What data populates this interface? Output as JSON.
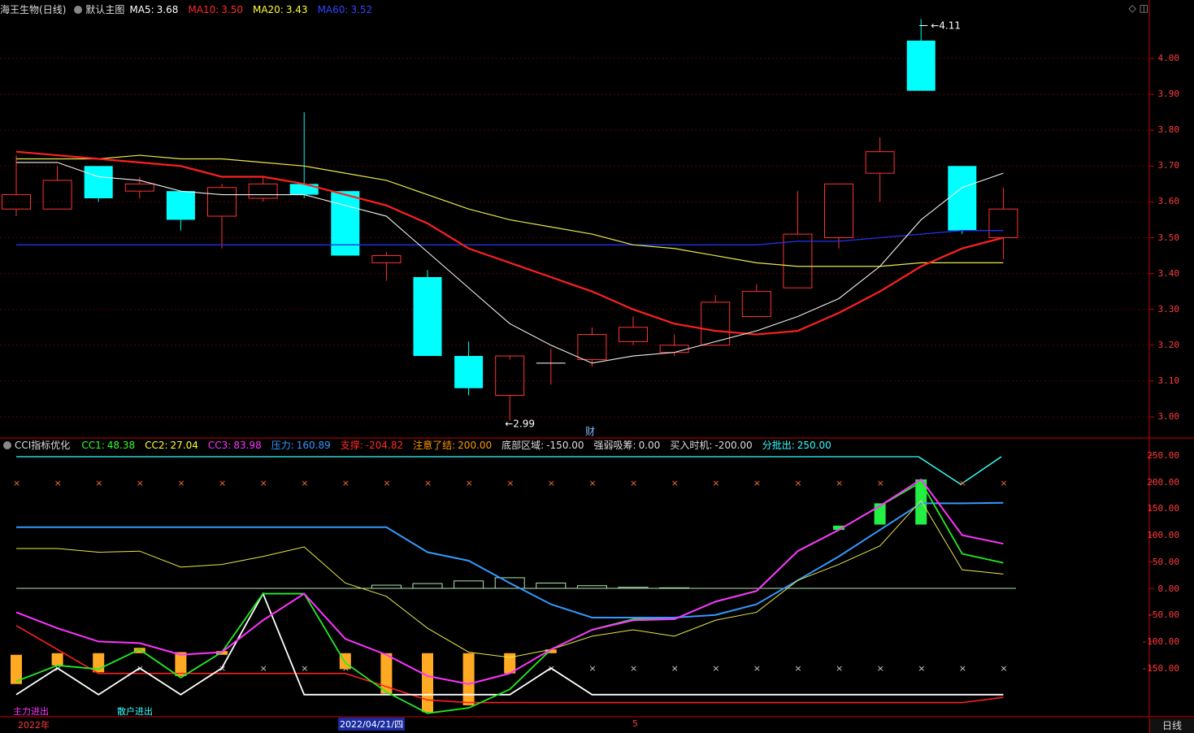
{
  "main_panel": {
    "stock_name": "海王生物",
    "period": "(日线)",
    "template": "默认主图",
    "ma": [
      {
        "label": "MA5:",
        "value": "3.68",
        "color": "#ffffff"
      },
      {
        "label": "MA10:",
        "value": "3.50",
        "color": "#ff2a2a"
      },
      {
        "label": "MA20:",
        "value": "3.43",
        "color": "#ffff33"
      },
      {
        "label": "MA60:",
        "value": "3.52",
        "color": "#3344ff"
      }
    ],
    "y_ticks": [
      "4.00",
      "3.90",
      "3.80",
      "3.70",
      "3.60",
      "3.50",
      "3.40",
      "3.30",
      "3.20",
      "3.10",
      "3.00"
    ],
    "high_annotation": "4.11",
    "low_annotation": "2.99",
    "cai_marker": "财"
  },
  "candles": [
    {
      "o": 3.58,
      "h": 3.73,
      "l": 3.56,
      "c": 3.62
    },
    {
      "o": 3.58,
      "h": 3.7,
      "l": 3.58,
      "c": 3.66
    },
    {
      "o": 3.7,
      "h": 3.7,
      "l": 3.6,
      "c": 3.61
    },
    {
      "o": 3.63,
      "h": 3.67,
      "l": 3.61,
      "c": 3.65
    },
    {
      "o": 3.63,
      "h": 3.63,
      "l": 3.52,
      "c": 3.55
    },
    {
      "o": 3.56,
      "h": 3.65,
      "l": 3.47,
      "c": 3.64
    },
    {
      "o": 3.61,
      "h": 3.67,
      "l": 3.6,
      "c": 3.65
    },
    {
      "o": 3.65,
      "h": 3.85,
      "l": 3.61,
      "c": 3.62
    },
    {
      "o": 3.63,
      "h": 3.63,
      "l": 3.45,
      "c": 3.45
    },
    {
      "o": 3.43,
      "h": 3.46,
      "l": 3.38,
      "c": 3.45
    },
    {
      "o": 3.39,
      "h": 3.41,
      "l": 3.17,
      "c": 3.17
    },
    {
      "o": 3.17,
      "h": 3.21,
      "l": 3.06,
      "c": 3.08
    },
    {
      "o": 3.06,
      "h": 3.16,
      "l": 2.99,
      "c": 3.17
    },
    {
      "o": 3.15,
      "h": 3.19,
      "l": 3.09,
      "c": 3.15
    },
    {
      "o": 3.16,
      "h": 3.25,
      "l": 3.14,
      "c": 3.23
    },
    {
      "o": 3.21,
      "h": 3.28,
      "l": 3.2,
      "c": 3.25
    },
    {
      "o": 3.18,
      "h": 3.23,
      "l": 3.17,
      "c": 3.2
    },
    {
      "o": 3.2,
      "h": 3.34,
      "l": 3.2,
      "c": 3.32
    },
    {
      "o": 3.28,
      "h": 3.37,
      "l": 3.28,
      "c": 3.35
    },
    {
      "o": 3.36,
      "h": 3.63,
      "l": 3.36,
      "c": 3.51
    },
    {
      "o": 3.5,
      "h": 3.65,
      "l": 3.47,
      "c": 3.65
    },
    {
      "o": 3.68,
      "h": 3.78,
      "l": 3.6,
      "c": 3.74
    },
    {
      "o": 4.05,
      "h": 4.11,
      "l": 3.91,
      "c": 3.91
    },
    {
      "o": 3.7,
      "h": 3.7,
      "l": 3.51,
      "c": 3.52
    },
    {
      "o": 3.5,
      "h": 3.64,
      "l": 3.44,
      "c": 3.58
    }
  ],
  "ma_series": {
    "ma5": [
      3.71,
      3.71,
      3.67,
      3.66,
      3.63,
      3.62,
      3.62,
      3.62,
      3.59,
      3.56,
      3.46,
      3.36,
      3.26,
      3.2,
      3.15,
      3.17,
      3.18,
      3.21,
      3.24,
      3.28,
      3.33,
      3.42,
      3.55,
      3.64,
      3.68
    ],
    "ma10": [
      3.74,
      3.73,
      3.72,
      3.71,
      3.7,
      3.67,
      3.67,
      3.65,
      3.62,
      3.59,
      3.54,
      3.47,
      3.43,
      3.39,
      3.35,
      3.3,
      3.26,
      3.24,
      3.23,
      3.24,
      3.29,
      3.35,
      3.42,
      3.47,
      3.5
    ],
    "ma20": [
      3.72,
      3.72,
      3.72,
      3.73,
      3.72,
      3.72,
      3.71,
      3.7,
      3.68,
      3.66,
      3.62,
      3.58,
      3.55,
      3.53,
      3.51,
      3.48,
      3.47,
      3.45,
      3.43,
      3.42,
      3.42,
      3.42,
      3.43,
      3.43,
      3.43
    ],
    "ma60": [
      3.48,
      3.48,
      3.48,
      3.48,
      3.48,
      3.48,
      3.48,
      3.48,
      3.48,
      3.48,
      3.48,
      3.48,
      3.48,
      3.48,
      3.48,
      3.48,
      3.48,
      3.48,
      3.48,
      3.49,
      3.49,
      3.5,
      3.51,
      3.52,
      3.52
    ]
  },
  "sub_panel": {
    "indicator_name": "CCI指标优化",
    "params": [
      {
        "label": "CC1:",
        "value": "48.38",
        "color": "#33ff33"
      },
      {
        "label": "CC2:",
        "value": "27.04",
        "color": "#ffff33"
      },
      {
        "label": "CC3:",
        "value": "83.98",
        "color": "#ff33ff"
      },
      {
        "label": "压力:",
        "value": "160.89",
        "color": "#3399ff"
      },
      {
        "label": "支撑:",
        "value": "-204.82",
        "color": "#ff2a2a"
      },
      {
        "label": "注意了结:",
        "value": "200.00",
        "color": "#ff9900"
      },
      {
        "label": "底部区域:",
        "value": "-150.00",
        "color": "#dddddd"
      },
      {
        "label": "强弱吸筹:",
        "value": "0.00",
        "color": "#dddddd"
      },
      {
        "label": "买入时机:",
        "value": "-200.00",
        "color": "#dddddd"
      },
      {
        "label": "分批出:",
        "value": "250.00",
        "color": "#33ffff"
      }
    ],
    "y_ticks": [
      "250.00",
      "200.00",
      "150.00",
      "100.00",
      "50.00",
      "0.00",
      "-50.00",
      "-100.00",
      "-150.00"
    ],
    "legend_main": "主力进出",
    "legend_retail": "散户进出"
  },
  "cci_series": {
    "cc1": [
      -175,
      -145,
      -152,
      -115,
      -168,
      -120,
      -10,
      -10,
      -140,
      -195,
      -235,
      -225,
      -190,
      -115,
      -78,
      -58,
      -58,
      -25,
      -5,
      70,
      110,
      155,
      200,
      65,
      48
    ],
    "cc2": [
      75,
      75,
      68,
      70,
      40,
      45,
      60,
      78,
      10,
      -15,
      -75,
      -120,
      -130,
      -115,
      -90,
      -78,
      -90,
      -60,
      -45,
      15,
      45,
      80,
      165,
      35,
      27
    ],
    "cc3": [
      -45,
      -75,
      -100,
      -103,
      -125,
      -120,
      -60,
      -10,
      -95,
      -125,
      -165,
      -180,
      -160,
      -115,
      -78,
      -60,
      -58,
      -25,
      -5,
      70,
      110,
      155,
      205,
      100,
      84
    ],
    "pressure": [
      115,
      115,
      115,
      115,
      115,
      115,
      115,
      115,
      115,
      115,
      68,
      52,
      10,
      -30,
      -55,
      -55,
      -55,
      -50,
      -30,
      15,
      60,
      110,
      160,
      160,
      161
    ],
    "support": [
      -70,
      -115,
      -160,
      -160,
      -160,
      -160,
      -160,
      -160,
      -160,
      -185,
      -210,
      -215,
      -215,
      -215,
      -215,
      -215,
      -215,
      -215,
      -215,
      -215,
      -215,
      -215,
      -215,
      -215,
      -205
    ],
    "white": [
      -200,
      -150,
      -200,
      -150,
      -200,
      -150,
      -10,
      -200,
      -200,
      -200,
      -200,
      -200,
      -200,
      -150,
      -200,
      -200,
      -200,
      -200,
      -200,
      -200,
      -200,
      -200,
      -200,
      -200,
      -200
    ]
  },
  "bottom_axis": {
    "year_label": "2022年",
    "cursor_date": "2022/04/21/四",
    "month_label": "5",
    "period_button": "日线"
  },
  "colors": {
    "up": "#ff3232",
    "down": "#00ffff",
    "axis": "#c80000",
    "tick_text": "#ff3c3c"
  }
}
